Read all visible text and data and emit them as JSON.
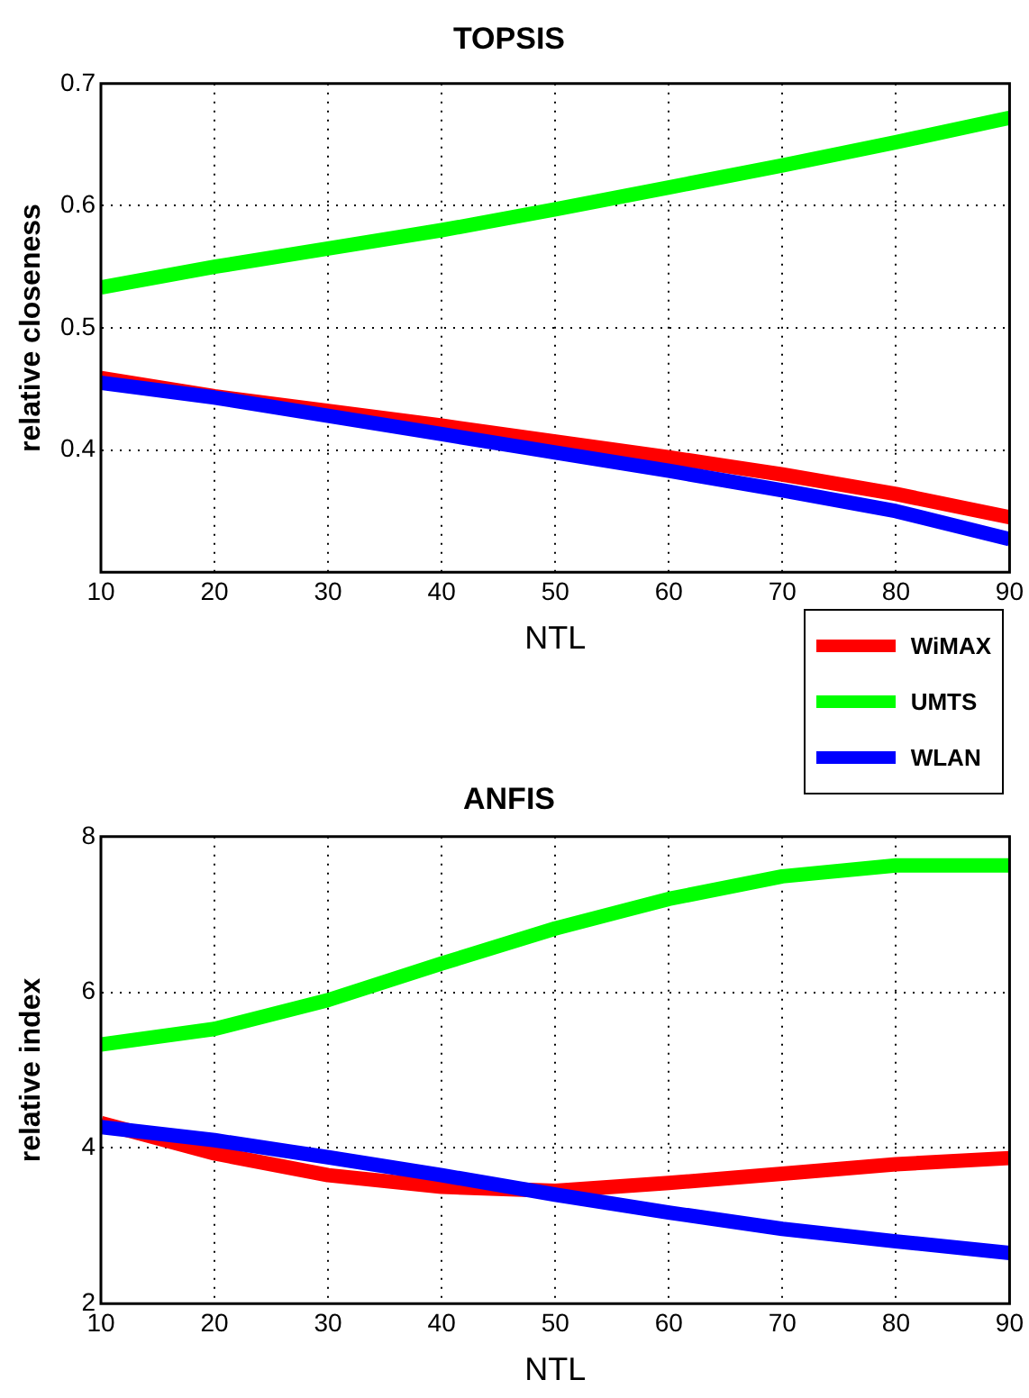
{
  "chart_data": [
    {
      "type": "line",
      "title": "TOPSIS",
      "xlabel": "NTL",
      "ylabel": "relative closeness",
      "x": [
        10,
        20,
        30,
        40,
        50,
        60,
        70,
        80,
        90
      ],
      "xlim": [
        10,
        90
      ],
      "xticks": [
        10,
        20,
        30,
        40,
        50,
        60,
        70,
        80,
        90
      ],
      "ylim": [
        0.3,
        0.7
      ],
      "yticks": [
        0.4,
        0.5,
        0.6,
        0.7
      ],
      "grid": true,
      "legend": "bottom right",
      "marker": "none",
      "line_style": "solid",
      "series": [
        {
          "name": "WiMAX",
          "color": "#ff0000",
          "values": [
            0.459,
            0.444,
            0.432,
            0.42,
            0.407,
            0.394,
            0.38,
            0.364,
            0.345
          ]
        },
        {
          "name": "UMTS",
          "color": "#00ff00",
          "values": [
            0.533,
            0.55,
            0.565,
            0.58,
            0.597,
            0.615,
            0.633,
            0.652,
            0.672
          ]
        },
        {
          "name": "WLAN",
          "color": "#0000ff",
          "values": [
            0.455,
            0.443,
            0.428,
            0.413,
            0.398,
            0.383,
            0.367,
            0.35,
            0.327
          ]
        }
      ]
    },
    {
      "type": "line",
      "title": "ANFIS",
      "xlabel": "NTL",
      "ylabel": "relative index",
      "x": [
        10,
        20,
        30,
        40,
        50,
        60,
        70,
        80,
        90
      ],
      "xlim": [
        10,
        90
      ],
      "xticks": [
        10,
        20,
        30,
        40,
        50,
        60,
        70,
        80,
        90
      ],
      "ylim": [
        2,
        8
      ],
      "yticks": [
        2,
        4,
        6,
        8
      ],
      "grid": true,
      "marker": "none",
      "line_style": "solid",
      "series": [
        {
          "color": "#ff0000",
          "values": [
            4.32,
            3.93,
            3.65,
            3.5,
            3.45,
            3.55,
            3.67,
            3.79,
            3.87
          ]
        },
        {
          "color": "#00ff00",
          "values": [
            5.33,
            5.53,
            5.9,
            6.37,
            6.82,
            7.2,
            7.49,
            7.63,
            7.63
          ]
        },
        {
          "color": "#0000ff",
          "values": [
            4.27,
            4.1,
            3.88,
            3.65,
            3.4,
            3.17,
            2.96,
            2.8,
            2.65
          ]
        }
      ]
    }
  ]
}
